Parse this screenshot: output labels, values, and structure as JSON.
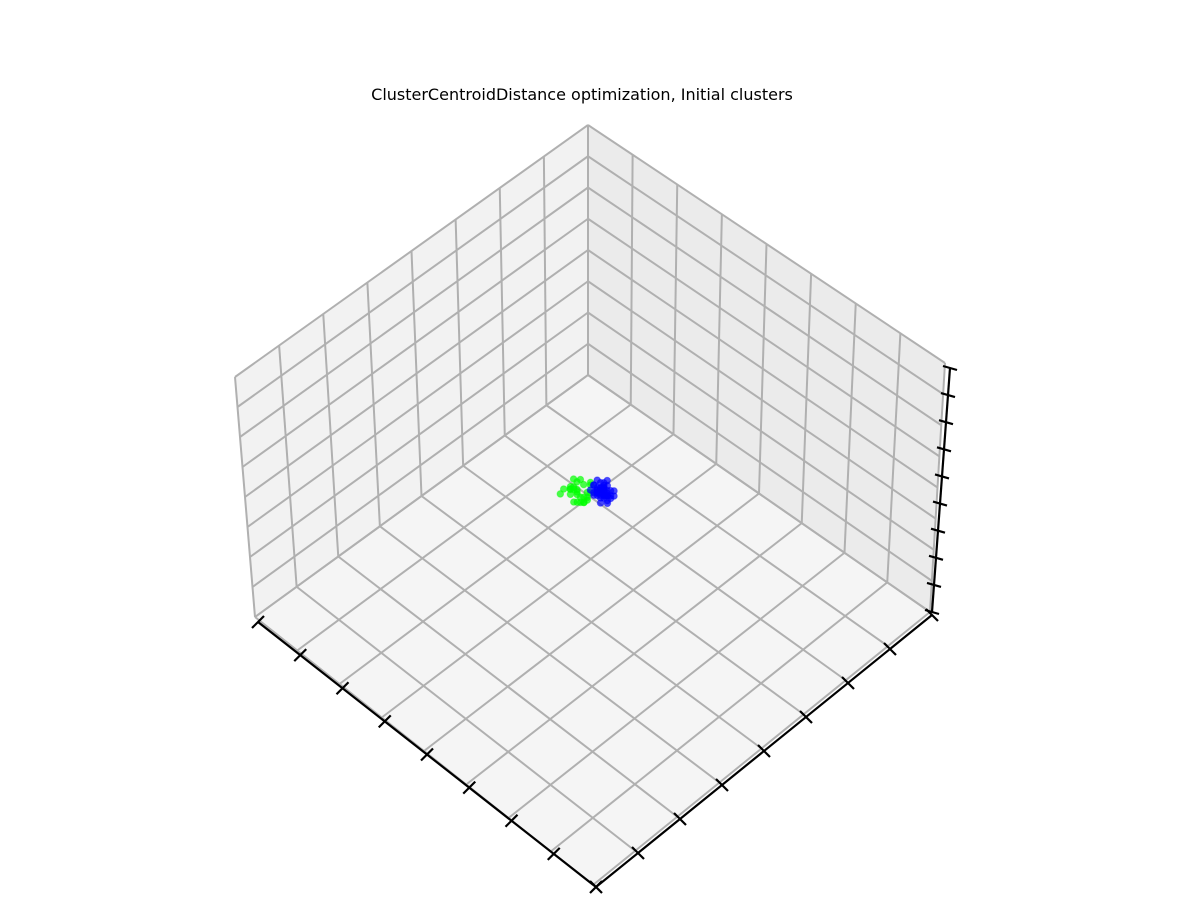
{
  "chart_data": {
    "type": "scatter",
    "projection": "3d",
    "title": "ClusterCentroidDistance optimization, Initial clusters",
    "xlabel": "",
    "ylabel": "",
    "zlabel": "",
    "xlim": [
      0,
      10
    ],
    "ylim": [
      0,
      10
    ],
    "zlim": [
      0,
      10
    ],
    "grid": true,
    "tick_labels_shown": false,
    "series": [
      {
        "color": "#00ff00",
        "points": [
          [
            5.0,
            5.1,
            5.6
          ],
          [
            5.1,
            5.2,
            5.6
          ],
          [
            4.8,
            5.0,
            5.6
          ],
          [
            4.7,
            5.3,
            5.7
          ],
          [
            4.9,
            5.4,
            5.4
          ],
          [
            4.6,
            5.0,
            5.5
          ],
          [
            5.2,
            5.3,
            5.7
          ],
          [
            4.7,
            5.1,
            5.3
          ],
          [
            4.9,
            5.3,
            5.8
          ],
          [
            5.0,
            5.4,
            5.5
          ],
          [
            4.6,
            5.4,
            5.6
          ],
          [
            5.1,
            5.4,
            5.6
          ],
          [
            4.8,
            5.2,
            5.4
          ],
          [
            4.5,
            5.0,
            5.5
          ],
          [
            4.9,
            4.9,
            5.7
          ],
          [
            4.6,
            5.2,
            5.4
          ],
          [
            5.0,
            5.2,
            5.5
          ],
          [
            4.6,
            5.5,
            5.5
          ],
          [
            5.2,
            5.4,
            5.7
          ],
          [
            5.1,
            5.1,
            5.7
          ],
          [
            4.7,
            5.3,
            5.6
          ],
          [
            4.8,
            5.4,
            5.6
          ],
          [
            4.7,
            5.0,
            5.7
          ],
          [
            4.9,
            5.2,
            5.4
          ],
          [
            5.1,
            5.3,
            5.5
          ],
          [
            4.8,
            5.3,
            5.7
          ],
          [
            4.7,
            5.2,
            5.6
          ],
          [
            5.0,
            5.0,
            5.8
          ]
        ]
      },
      {
        "color": "#0000ff",
        "points": [
          [
            5.0,
            4.8,
            5.8
          ],
          [
            5.1,
            4.9,
            5.6
          ],
          [
            5.0,
            4.7,
            5.6
          ],
          [
            5.2,
            4.8,
            5.7
          ],
          [
            5.3,
            4.9,
            5.5
          ],
          [
            5.0,
            4.6,
            5.5
          ],
          [
            5.1,
            4.7,
            5.5
          ],
          [
            5.2,
            5.0,
            5.6
          ],
          [
            5.4,
            4.9,
            5.7
          ],
          [
            4.9,
            4.8,
            5.5
          ],
          [
            5.3,
            5.0,
            5.4
          ],
          [
            5.1,
            4.6,
            5.7
          ],
          [
            5.0,
            4.9,
            5.7
          ],
          [
            5.2,
            4.7,
            5.3
          ],
          [
            5.3,
            4.8,
            5.6
          ],
          [
            5.1,
            4.8,
            5.6
          ],
          [
            5.0,
            4.7,
            5.3
          ],
          [
            5.3,
            4.7,
            5.4
          ],
          [
            5.0,
            5.0,
            5.6
          ],
          [
            5.2,
            4.9,
            5.8
          ],
          [
            5.1,
            5.0,
            5.5
          ],
          [
            5.3,
            4.6,
            5.5
          ],
          [
            5.2,
            4.6,
            5.4
          ],
          [
            5.4,
            4.8,
            5.5
          ],
          [
            5.2,
            4.8,
            5.4
          ],
          [
            5.1,
            4.9,
            5.6
          ],
          [
            5.2,
            4.9,
            5.5
          ],
          [
            5.0,
            4.8,
            5.5
          ],
          [
            5.3,
            4.9,
            5.8
          ],
          [
            5.1,
            4.7,
            5.2
          ],
          [
            5.2,
            5.0,
            5.7
          ],
          [
            5.3,
            4.8,
            5.3
          ],
          [
            5.0,
            4.6,
            5.2
          ],
          [
            5.4,
            4.7,
            5.5
          ],
          [
            5.1,
            4.8,
            5.4
          ],
          [
            5.0,
            4.9,
            5.4
          ],
          [
            5.2,
            4.7,
            5.7
          ],
          [
            5.3,
            5.0,
            5.6
          ],
          [
            5.1,
            4.6,
            5.3
          ],
          [
            5.0,
            4.8,
            5.3
          ],
          [
            5.4,
            4.9,
            5.4
          ],
          [
            5.2,
            4.8,
            5.8
          ]
        ]
      }
    ]
  }
}
